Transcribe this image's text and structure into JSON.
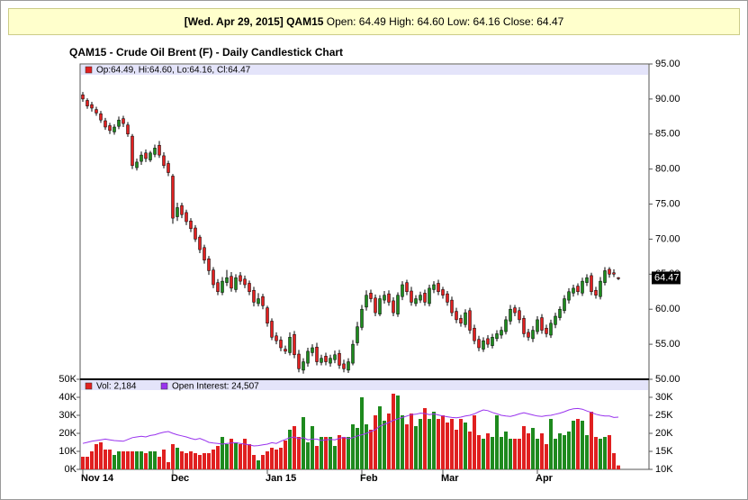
{
  "header": {
    "date_symbol": "[Wed. Apr 29, 2015] QAM15",
    "quote": "Open: 64.49 High: 64.60 Low: 64.16 Close: 64.47"
  },
  "chart_data": [
    {
      "type": "candlestick",
      "title": "QAM15 - Crude Oil Brent (F) - Daily Candlestick Chart",
      "legend": "Op:64.49, Hi:64.60, Lo:64.16, Cl:64.47",
      "legend_color": "#e02020",
      "up_color": "#1e8a1e",
      "down_color": "#e02020",
      "open": [
        90.6,
        89.8,
        89.2,
        88.5,
        87.9,
        86.9,
        86.2,
        85.3,
        86.1,
        87.2,
        86.3,
        84.7,
        80.2,
        81.1,
        82.3,
        81.3,
        82.1,
        83.4,
        81.9,
        80.8,
        79.0,
        73.2,
        74.8,
        73.8,
        72.6,
        71.6,
        70.3,
        68.8,
        67.2,
        65.6,
        63.8,
        62.4,
        63.8,
        64.7,
        62.8,
        64.8,
        64.3,
        63.7,
        62.7,
        60.8,
        61.8,
        60.2,
        58.3,
        56.2,
        55.6,
        54.3,
        53.8,
        56.4,
        53.6,
        51.3,
        52.3,
        53.8,
        54.6,
        52.4,
        53.3,
        52.3,
        52.8,
        53.7,
        52.2,
        51.3,
        52.3,
        55.2,
        57.4,
        60.3,
        62.3,
        61.6,
        59.3,
        61.3,
        62.2,
        61.2,
        59.3,
        61.8,
        63.8,
        62.6,
        60.8,
        61.3,
        62.3,
        60.8,
        62.8,
        63.7,
        62.8,
        62.2,
        61.3,
        59.7,
        58.7,
        57.8,
        59.8,
        57.3,
        55.7,
        54.3,
        55.8,
        54.8,
        55.8,
        56.3,
        56.8,
        58.3,
        60.2,
        59.8,
        58.7,
        56.7,
        55.8,
        56.8,
        58.8,
        57.3,
        56.3,
        57.8,
        58.8,
        59.8,
        61.3,
        62.3,
        63.3,
        62.3,
        63.8,
        64.8,
        62.7,
        61.8,
        63.8,
        65.7,
        65.2,
        64.49
      ],
      "high": [
        91.0,
        90.1,
        89.6,
        88.9,
        88.3,
        87.3,
        86.6,
        86.4,
        87.5,
        87.6,
        86.7,
        85.0,
        81.5,
        82.5,
        82.8,
        82.6,
        83.5,
        84.0,
        82.4,
        81.2,
        79.3,
        75.2,
        75.2,
        74.2,
        73.0,
        72.0,
        70.6,
        69.2,
        67.6,
        66.0,
        64.3,
        64.6,
        65.6,
        65.3,
        65.0,
        65.3,
        64.8,
        64.1,
        63.2,
        62.3,
        62.2,
        60.5,
        58.7,
        56.7,
        56.1,
        54.8,
        56.7,
        56.9,
        54.2,
        53.0,
        54.5,
        55.0,
        55.2,
        53.5,
        53.8,
        53.5,
        54.1,
        54.2,
        52.8,
        53.0,
        55.6,
        58.2,
        60.6,
        62.7,
        62.8,
        62.1,
        62.0,
        62.6,
        62.7,
        61.7,
        62.4,
        64.0,
        64.2,
        63.2,
        62.0,
        62.5,
        62.8,
        63.5,
        64.0,
        64.2,
        63.2,
        62.6,
        61.8,
        60.2,
        59.2,
        60.0,
        60.2,
        57.8,
        56.2,
        56.0,
        56.3,
        56.5,
        57.0,
        57.5,
        59.0,
        60.6,
        60.6,
        60.3,
        59.1,
        57.2,
        57.6,
        59.0,
        59.3,
        57.8,
        58.5,
        59.5,
        60.4,
        62.0,
        63.0,
        63.5,
        63.7,
        64.5,
        65.0,
        65.2,
        63.2,
        64.6,
        66.0,
        66.0,
        65.7,
        64.6
      ],
      "low": [
        89.6,
        88.6,
        88.2,
        87.6,
        86.6,
        85.6,
        85.0,
        84.9,
        85.7,
        86.0,
        84.6,
        80.0,
        79.8,
        80.6,
        81.0,
        81.0,
        81.7,
        81.6,
        80.1,
        79.0,
        72.2,
        72.6,
        73.0,
        72.0,
        71.0,
        69.6,
        68.0,
        66.5,
        64.9,
        63.0,
        62.0,
        62.0,
        63.3,
        62.5,
        62.4,
        63.5,
        63.0,
        62.0,
        60.4,
        60.4,
        60.0,
        57.5,
        55.6,
        55.0,
        54.0,
        53.6,
        53.4,
        53.0,
        51.0,
        50.8,
        51.8,
        53.3,
        52.0,
        52.0,
        52.0,
        51.8,
        52.3,
        51.5,
        51.0,
        50.9,
        52.0,
        54.8,
        57.0,
        59.8,
        61.0,
        59.0,
        59.0,
        60.8,
        60.5,
        59.0,
        58.9,
        61.3,
        62.0,
        60.5,
        60.4,
        60.9,
        60.5,
        60.4,
        62.3,
        62.0,
        61.5,
        60.5,
        59.0,
        58.0,
        57.5,
        57.4,
        56.5,
        55.0,
        54.0,
        53.9,
        54.5,
        54.4,
        55.4,
        55.8,
        56.4,
        57.8,
        59.0,
        58.0,
        56.0,
        55.5,
        55.3,
        56.4,
        56.5,
        56.0,
        55.9,
        57.3,
        58.4,
        59.4,
        60.8,
        61.8,
        62.0,
        61.9,
        63.3,
        62.0,
        61.5,
        61.4,
        63.4,
        64.5,
        64.6,
        64.16
      ],
      "close": [
        90.0,
        89.0,
        88.7,
        88.0,
        87.0,
        86.0,
        85.5,
        86.0,
        87.0,
        86.5,
        85.0,
        80.5,
        81.0,
        82.0,
        81.5,
        82.3,
        83.0,
        82.0,
        80.5,
        79.5,
        73.0,
        74.5,
        73.5,
        72.5,
        71.5,
        70.0,
        68.5,
        67.0,
        65.5,
        63.5,
        62.5,
        64.0,
        64.5,
        63.0,
        64.5,
        64.0,
        63.5,
        62.5,
        61.0,
        61.5,
        60.5,
        58.0,
        56.0,
        55.5,
        54.5,
        54.0,
        56.0,
        53.5,
        51.5,
        52.5,
        54.0,
        54.5,
        52.5,
        53.0,
        52.5,
        53.0,
        53.5,
        52.0,
        51.5,
        52.5,
        55.0,
        57.5,
        60.0,
        62.0,
        61.5,
        59.5,
        61.5,
        62.0,
        61.0,
        59.5,
        62.0,
        63.5,
        62.5,
        61.0,
        61.5,
        62.0,
        61.0,
        63.0,
        63.5,
        62.5,
        62.0,
        61.0,
        59.5,
        58.5,
        58.0,
        59.5,
        57.0,
        55.5,
        54.5,
        55.5,
        55.0,
        56.0,
        56.5,
        57.0,
        58.5,
        60.0,
        59.5,
        58.5,
        56.5,
        56.0,
        57.0,
        58.5,
        57.0,
        56.5,
        58.0,
        59.0,
        60.0,
        61.5,
        62.5,
        63.0,
        62.5,
        64.0,
        64.5,
        62.5,
        62.0,
        64.0,
        65.5,
        65.0,
        65.0,
        64.47
      ],
      "ylim": [
        50,
        95
      ],
      "yticks": [
        {
          "value": 50,
          "label": "50.00"
        },
        {
          "value": 55,
          "label": "55.00"
        },
        {
          "value": 60,
          "label": "60.00"
        },
        {
          "value": 65,
          "label": "65.00"
        },
        {
          "value": 70,
          "label": "70.00"
        },
        {
          "value": 75,
          "label": "75.00"
        },
        {
          "value": 80,
          "label": "80.00"
        },
        {
          "value": 85,
          "label": "85.00"
        },
        {
          "value": 90,
          "label": "90.00"
        },
        {
          "value": 95,
          "label": "95.00"
        }
      ]
    },
    {
      "type": "bar",
      "categories": [
        "Nov 14",
        null,
        null,
        null,
        null,
        null,
        null,
        null,
        null,
        null,
        null,
        null,
        null,
        null,
        null,
        null,
        null,
        null,
        null,
        null,
        "Dec",
        null,
        null,
        null,
        null,
        null,
        null,
        null,
        null,
        null,
        null,
        null,
        null,
        null,
        null,
        null,
        null,
        null,
        null,
        null,
        null,
        "Jan 15",
        null,
        null,
        null,
        null,
        null,
        null,
        null,
        null,
        null,
        null,
        null,
        null,
        null,
        null,
        null,
        null,
        null,
        null,
        null,
        null,
        "Feb",
        null,
        null,
        null,
        null,
        null,
        null,
        null,
        null,
        null,
        null,
        null,
        null,
        null,
        null,
        null,
        null,
        null,
        "Mar",
        null,
        null,
        null,
        null,
        null,
        null,
        null,
        null,
        null,
        null,
        null,
        null,
        null,
        null,
        null,
        null,
        null,
        null,
        null,
        null,
        "Apr",
        null,
        null,
        null,
        null,
        null,
        null,
        null,
        null,
        null,
        null,
        null,
        null,
        null,
        null,
        null,
        null,
        null,
        null
      ],
      "series": [
        {
          "name": "Vol: 2,184",
          "color": "#e02020",
          "values": [
            7,
            7,
            10,
            14,
            15,
            11,
            11,
            8,
            10,
            10,
            10,
            10,
            10,
            10,
            9,
            10,
            10,
            7,
            11,
            4,
            14,
            12,
            10,
            9,
            10,
            9,
            8,
            9,
            9,
            11,
            13,
            18,
            14,
            17,
            15,
            14,
            17,
            14,
            8,
            5,
            8,
            10,
            12,
            11,
            12,
            16,
            22,
            24,
            18,
            29,
            15,
            24,
            13,
            18,
            18,
            18,
            13,
            19,
            18,
            18,
            25,
            23,
            40,
            25,
            22,
            30,
            35,
            27,
            31,
            42,
            41,
            30,
            25,
            31,
            24,
            28,
            34,
            28,
            32,
            28,
            30,
            26,
            28,
            22,
            28,
            26,
            21,
            30,
            19,
            17,
            20,
            18,
            30,
            18,
            21,
            17,
            17,
            17,
            24,
            20,
            23,
            17,
            20,
            14,
            28,
            17,
            20,
            19,
            21,
            27,
            28,
            27,
            19,
            32,
            18,
            17,
            18,
            19,
            9,
            2.184
          ]
        },
        {
          "name": "Open Interest: 24,507",
          "color": "#9933ee",
          "type": "line",
          "axis": "y2",
          "values": [
            17.2,
            17.5,
            17.8,
            18.0,
            18.2,
            18.4,
            18.2,
            18.0,
            17.9,
            17.8,
            18.3,
            18.8,
            19.0,
            19.2,
            19.0,
            19.4,
            19.6,
            20.0,
            20.3,
            20.5,
            20.0,
            19.6,
            19.3,
            19.0,
            18.6,
            18.3,
            18.6,
            18.1,
            17.5,
            17.3,
            17.2,
            17.0,
            17.2,
            17.3,
            17.4,
            17.2,
            17.0,
            16.8,
            16.5,
            16.6,
            16.8,
            17.0,
            17.4,
            17.2,
            17.8,
            18.3,
            18.8,
            19.0,
            18.5,
            18.8,
            18.2,
            18.4,
            18.4,
            18.0,
            18.2,
            18.3,
            18.2,
            18.6,
            18.9,
            18.5,
            18.8,
            19.3,
            19.6,
            20.0,
            20.5,
            21.0,
            22.0,
            22.5,
            23.0,
            23.6,
            24.0,
            24.4,
            24.8,
            25.2,
            25.3,
            25.6,
            25.5,
            25.2,
            25.4,
            25.1,
            24.8,
            24.6,
            24.4,
            24.3,
            24.5,
            24.8,
            25.0,
            25.4,
            26.0,
            26.5,
            26.3,
            25.8,
            25.4,
            25.0,
            24.8,
            24.7,
            25.0,
            25.4,
            25.7,
            25.4,
            25.1,
            24.8,
            24.7,
            24.9,
            25.0,
            25.3,
            25.6,
            26.0,
            26.5,
            26.8,
            26.9,
            26.7,
            26.2,
            25.8,
            25.3,
            25.0,
            24.8,
            24.8,
            24.4,
            24.507
          ]
        }
      ],
      "ylim": [
        0,
        50
      ],
      "yticks": [
        {
          "value": 0,
          "label": "0K"
        },
        {
          "value": 10,
          "label": "10K"
        },
        {
          "value": 20,
          "label": "20K"
        },
        {
          "value": 30,
          "label": "30K"
        },
        {
          "value": 40,
          "label": "40K"
        },
        {
          "value": 50,
          "label": "50K"
        }
      ],
      "y2lim": [
        10,
        35
      ],
      "y2ticks": [
        {
          "value": 10,
          "label": "10K"
        },
        {
          "value": 15,
          "label": "15K"
        },
        {
          "value": 20,
          "label": "20K"
        },
        {
          "value": 25,
          "label": "25K"
        },
        {
          "value": 30,
          "label": "30K"
        }
      ]
    }
  ]
}
